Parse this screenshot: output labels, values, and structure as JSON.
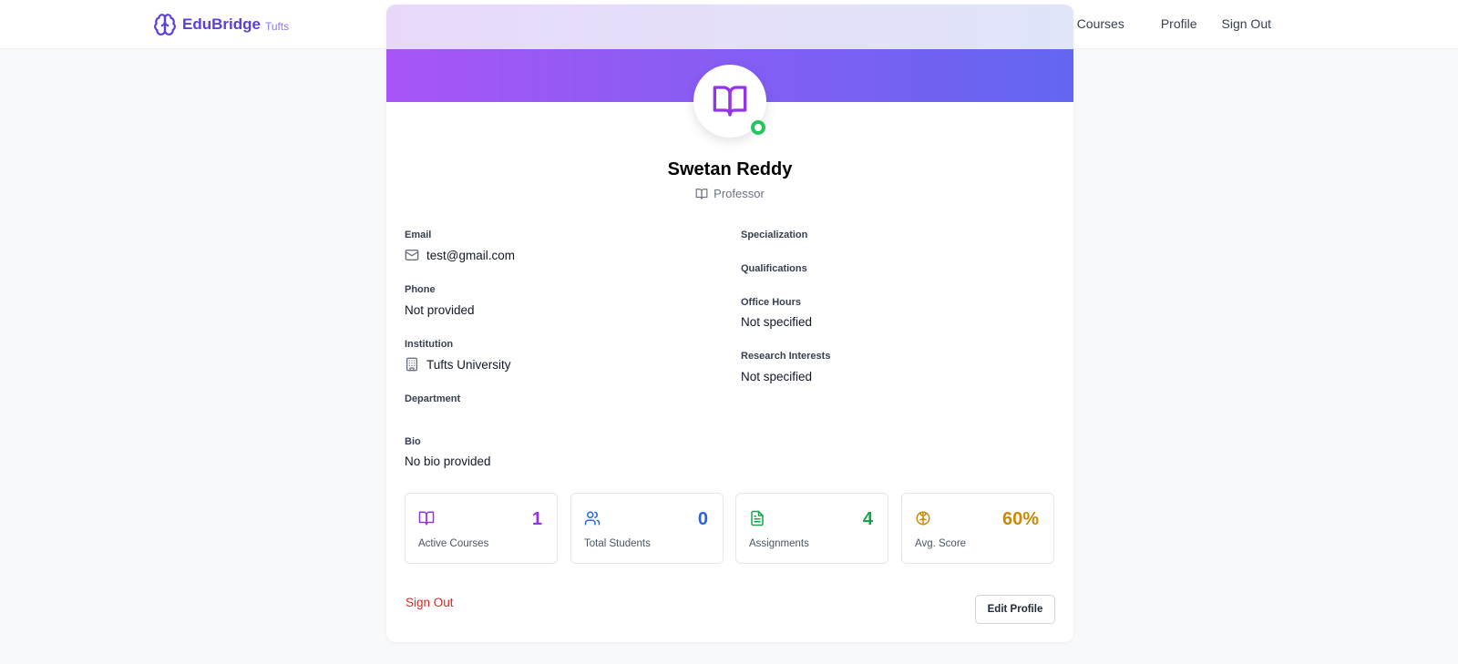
{
  "brand": {
    "name": "EduBridge",
    "sub": "Tufts"
  },
  "nav": {
    "courses": "Courses",
    "profile": "Profile",
    "signout": "Sign Out"
  },
  "profile": {
    "name": "Swetan Reddy",
    "role": "Professor"
  },
  "fields_left": {
    "email_label": "Email",
    "email_value": "test@gmail.com",
    "phone_label": "Phone",
    "phone_value": "Not provided",
    "institution_label": "Institution",
    "institution_value": "Tufts University",
    "department_label": "Department",
    "department_value": "",
    "bio_label": "Bio",
    "bio_value": "No bio provided"
  },
  "fields_right": {
    "specialization_label": "Specialization",
    "specialization_value": "",
    "qualifications_label": "Qualifications",
    "qualifications_value": "",
    "office_hours_label": "Office Hours",
    "office_hours_value": "Not specified",
    "research_label": "Research Interests",
    "research_value": "Not specified"
  },
  "stats": [
    {
      "label": "Active Courses",
      "value": "1",
      "color": "#9333ea",
      "icon": "book-icon"
    },
    {
      "label": "Total Students",
      "value": "0",
      "color": "#2563eb",
      "icon": "users-icon"
    },
    {
      "label": "Assignments",
      "value": "4",
      "color": "#16a34a",
      "icon": "file-text-icon"
    },
    {
      "label": "Avg. Score",
      "value": "60%",
      "color": "#ca8a04",
      "icon": "brain-icon"
    }
  ],
  "actions": {
    "signout": "Sign Out",
    "edit": "Edit Profile"
  },
  "colors": {
    "accent": "#5b3fd6",
    "banner_start": "#a855f7",
    "banner_end": "#6366f1",
    "online": "#22c55e",
    "danger": "#dc2626"
  }
}
